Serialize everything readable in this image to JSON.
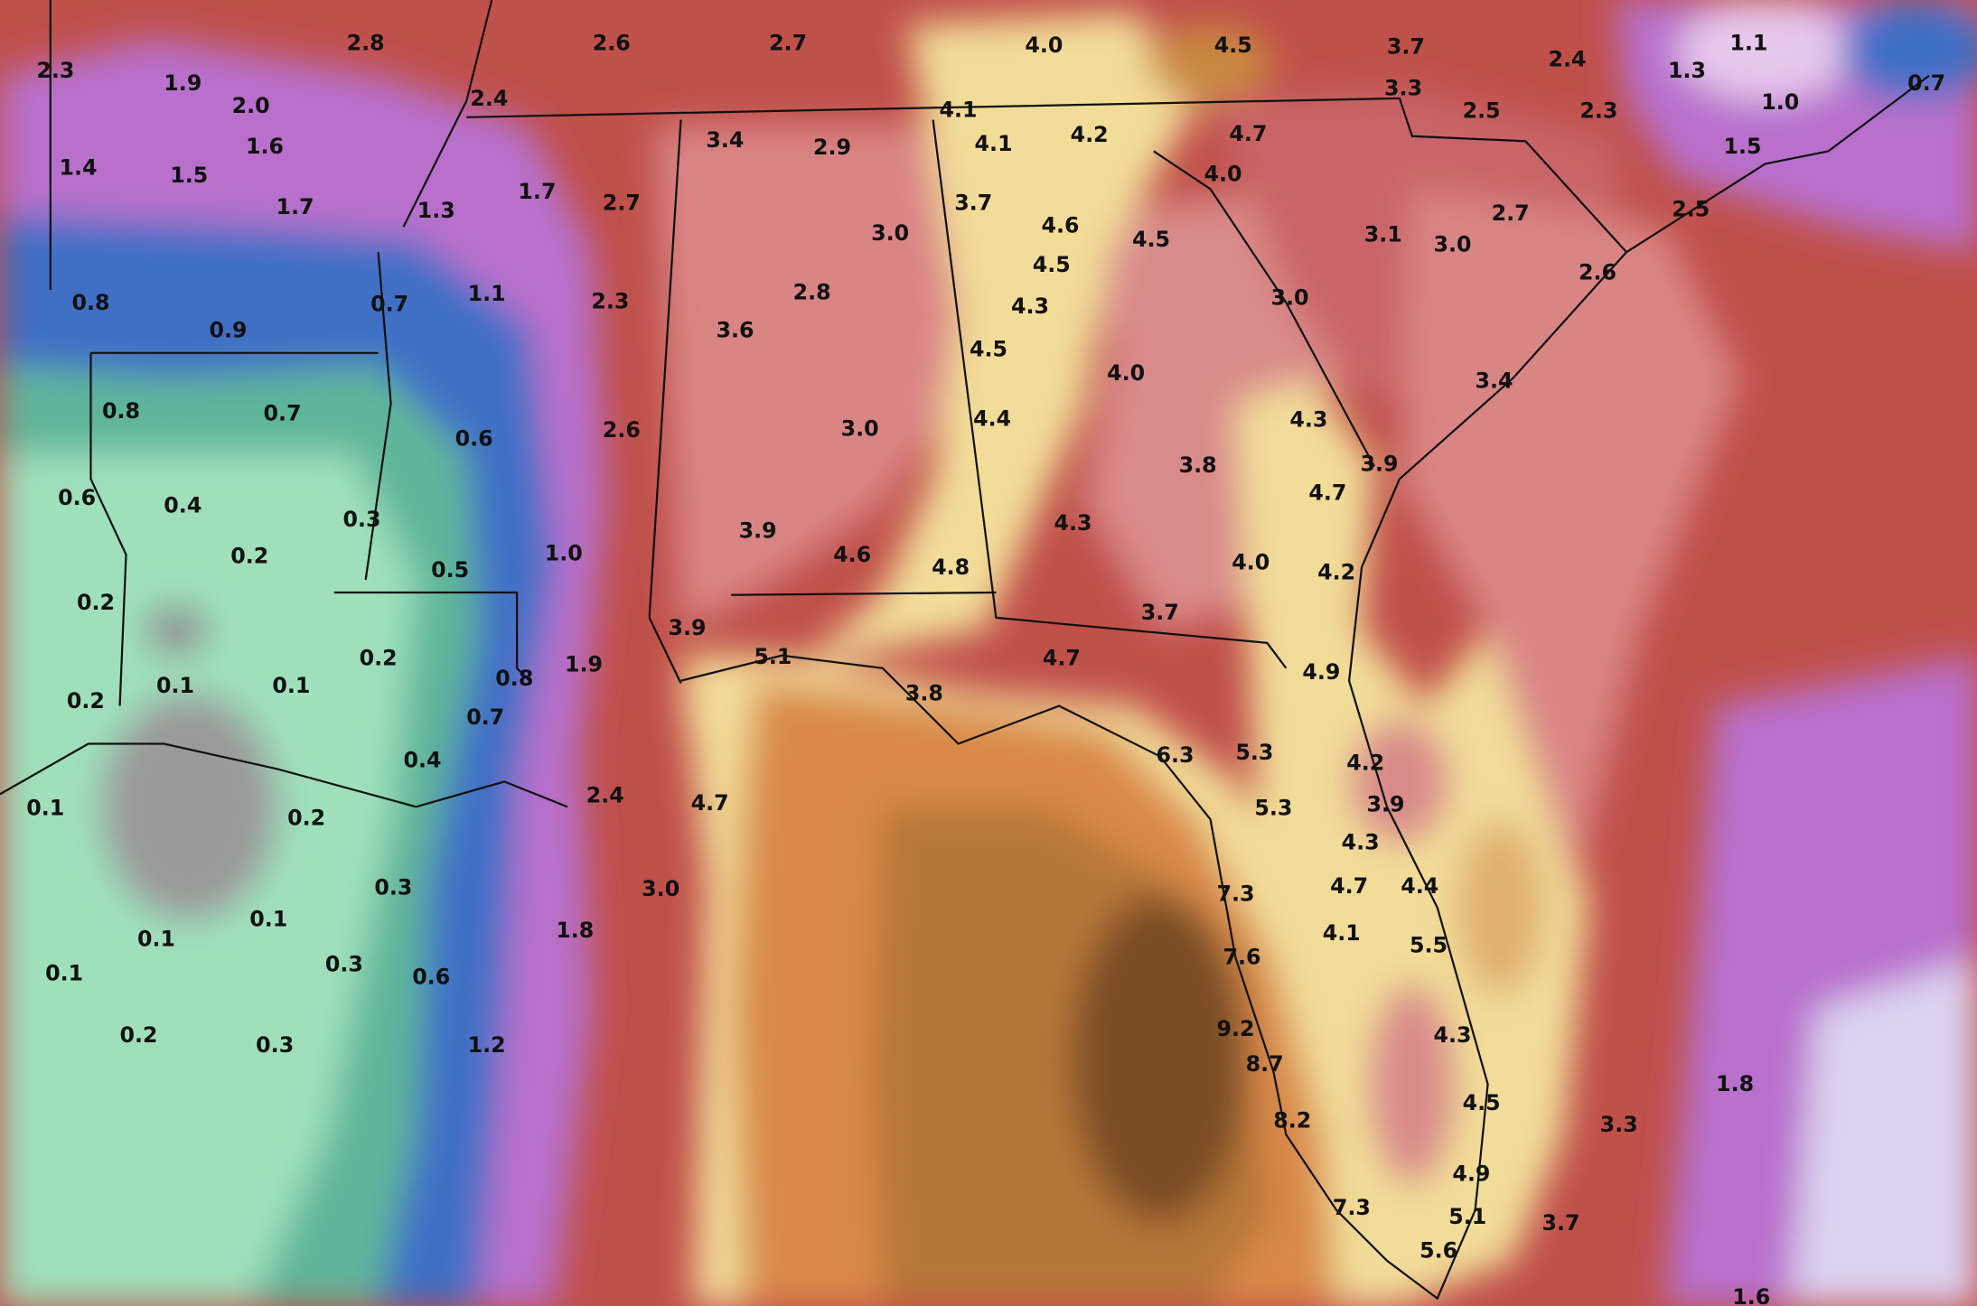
{
  "map": {
    "labels": [
      "2.3",
      "2.8",
      "2.6",
      "2.7",
      "4.0",
      "4.5",
      "3.7",
      "2.4",
      "1.3",
      "1.1",
      "0.7",
      "1.9",
      "2.0",
      "2.4",
      "4.1",
      "3.3",
      "2.5",
      "2.3",
      "1.0",
      "1.4",
      "1.5",
      "1.6",
      "3.4",
      "2.9",
      "4.1",
      "4.2",
      "4.7",
      "1.5",
      "1.7",
      "1.3",
      "1.7",
      "2.7",
      "3.7",
      "4.0",
      "2.7",
      "2.5",
      "3.0",
      "4.6",
      "4.5",
      "3.1",
      "3.0",
      "0.8",
      "0.7",
      "1.1",
      "2.3",
      "2.8",
      "4.5",
      "4.3",
      "3.0",
      "2.6",
      "0.9",
      "3.6",
      "4.5",
      "4.0",
      "0.8",
      "0.7",
      "0.6",
      "2.6",
      "3.0",
      "4.4",
      "4.3",
      "3.4",
      "0.6",
      "0.4",
      "0.3",
      "3.8",
      "3.9",
      "4.7",
      "0.2",
      "0.5",
      "1.0",
      "3.9",
      "4.6",
      "4.8",
      "4.3",
      "4.0",
      "4.2",
      "0.2",
      "3.7",
      "3.9",
      "0.2",
      "1.9",
      "5.1",
      "4.7",
      "4.9",
      "0.1",
      "0.1",
      "0.8",
      "3.8",
      "0.2",
      "0.7",
      "0.4",
      "6.3",
      "5.3",
      "4.2",
      "0.1",
      "2.4",
      "4.7",
      "5.3",
      "3.9",
      "0.2",
      "4.3",
      "0.3",
      "3.0",
      "7.3",
      "4.7",
      "4.4",
      "0.1",
      "1.8",
      "4.1",
      "5.5",
      "0.1",
      "0.1",
      "0.3",
      "0.6",
      "7.6",
      "0.2",
      "0.3",
      "1.2",
      "9.2",
      "4.3",
      "8.7",
      "1.8",
      "4.5",
      "8.2",
      "3.3",
      "4.9",
      "7.3",
      "5.1",
      "3.7",
      "5.6",
      "1.6"
    ]
  }
}
